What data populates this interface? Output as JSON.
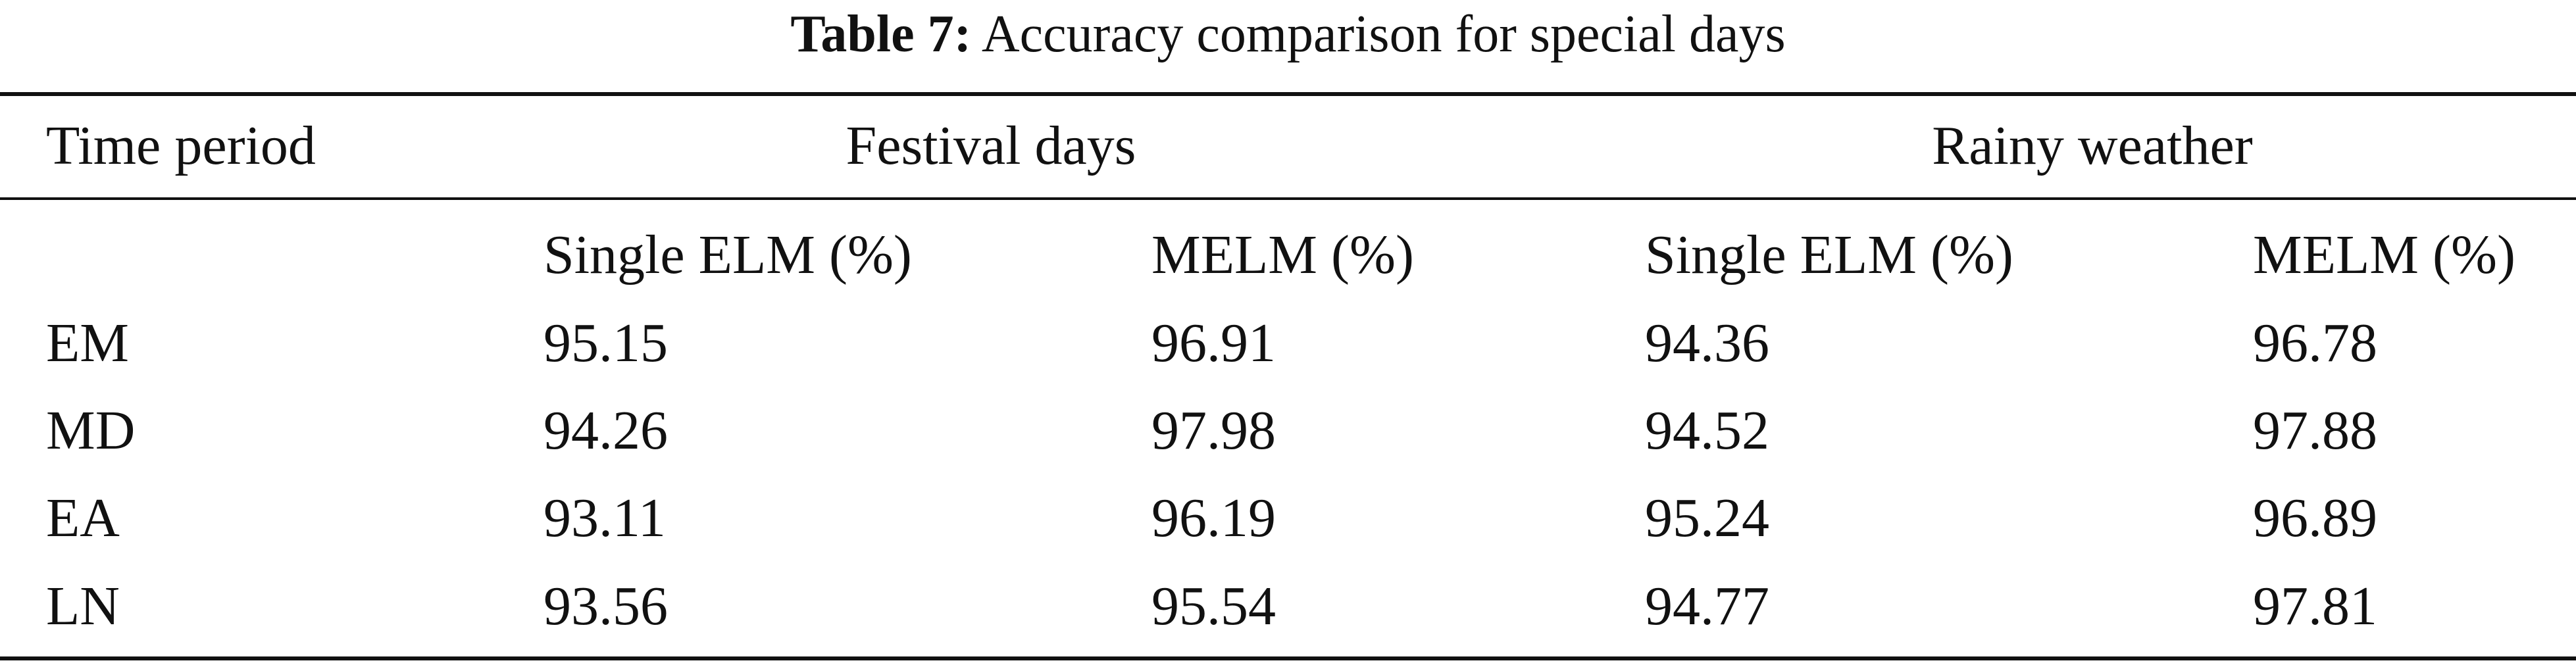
{
  "caption": {
    "label": "Table 7:",
    "text": "Accuracy comparison for special days"
  },
  "table": {
    "stub_header": "Time period",
    "groups": [
      "Festival days",
      "Rainy weather"
    ],
    "subheaders": [
      "Single ELM (%)",
      "MELM (%)",
      "Single ELM (%)",
      "MELM (%)"
    ],
    "rows": [
      {
        "period": "EM",
        "values": [
          "95.15",
          "96.91",
          "94.36",
          "96.78"
        ]
      },
      {
        "period": "MD",
        "values": [
          "94.26",
          "97.98",
          "94.52",
          "97.88"
        ]
      },
      {
        "period": "EA",
        "values": [
          "93.11",
          "96.19",
          "95.24",
          "96.89"
        ]
      },
      {
        "period": "LN",
        "values": [
          "93.56",
          "95.54",
          "94.77",
          "97.81"
        ]
      }
    ]
  }
}
